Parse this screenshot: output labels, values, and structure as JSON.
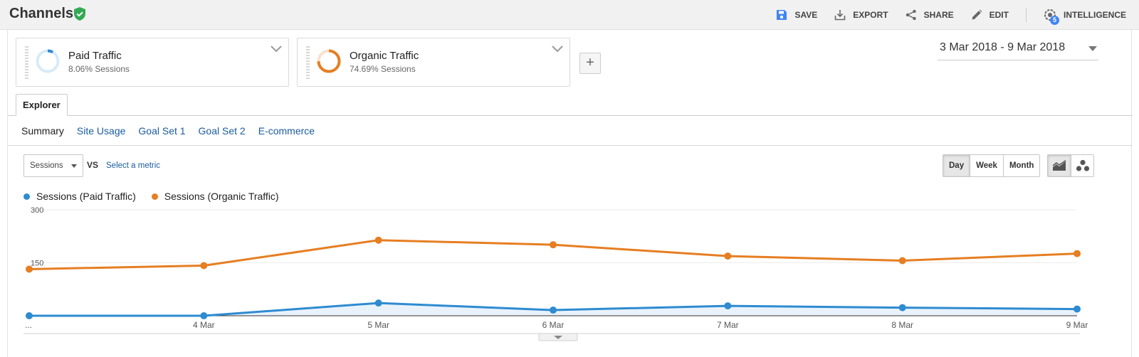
{
  "header": {
    "title": "Channels",
    "actions": [
      {
        "label": "SAVE",
        "icon": "save-icon"
      },
      {
        "label": "EXPORT",
        "icon": "export-icon"
      },
      {
        "label": "SHARE",
        "icon": "share-icon"
      },
      {
        "label": "EDIT",
        "icon": "edit-icon"
      },
      {
        "label": "INTELLIGENCE",
        "icon": "intelligence-icon",
        "badge": "5"
      }
    ]
  },
  "segments": [
    {
      "name": "Paid Traffic",
      "sub": "8.06% Sessions",
      "percent": 8.06,
      "color": "#2e8bd0"
    },
    {
      "name": "Organic Traffic",
      "sub": "74.69% Sessions",
      "percent": 74.69,
      "color": "#e67e22"
    }
  ],
  "add_segment_label": "+",
  "date_range": "3 Mar 2018 - 9 Mar 2018",
  "tab": "Explorer",
  "subtabs": [
    "Summary",
    "Site Usage",
    "Goal Set 1",
    "Goal Set 2",
    "E-commerce"
  ],
  "metric": {
    "selected": "Sessions",
    "vs": "VS",
    "select_label": "Select a metric"
  },
  "period": {
    "options": [
      "Day",
      "Week",
      "Month"
    ],
    "active": "Day"
  },
  "colors": {
    "paid": "#2e8bd0",
    "organic": "#e67e22",
    "link": "#1a5c9e"
  },
  "chart_data": {
    "type": "line",
    "categories": [
      "...",
      "4 Mar",
      "5 Mar",
      "6 Mar",
      "7 Mar",
      "8 Mar",
      "9 Mar"
    ],
    "series": [
      {
        "name": "Sessions (Paid Traffic)",
        "values": [
          0,
          0,
          36,
          16,
          28,
          23,
          19
        ]
      },
      {
        "name": "Sessions (Organic Traffic)",
        "values": [
          132,
          142,
          214,
          201,
          169,
          156,
          176
        ]
      }
    ],
    "yticks": [
      150,
      300
    ],
    "ylim": [
      0,
      300
    ],
    "grid": true,
    "legend": "top-left"
  }
}
